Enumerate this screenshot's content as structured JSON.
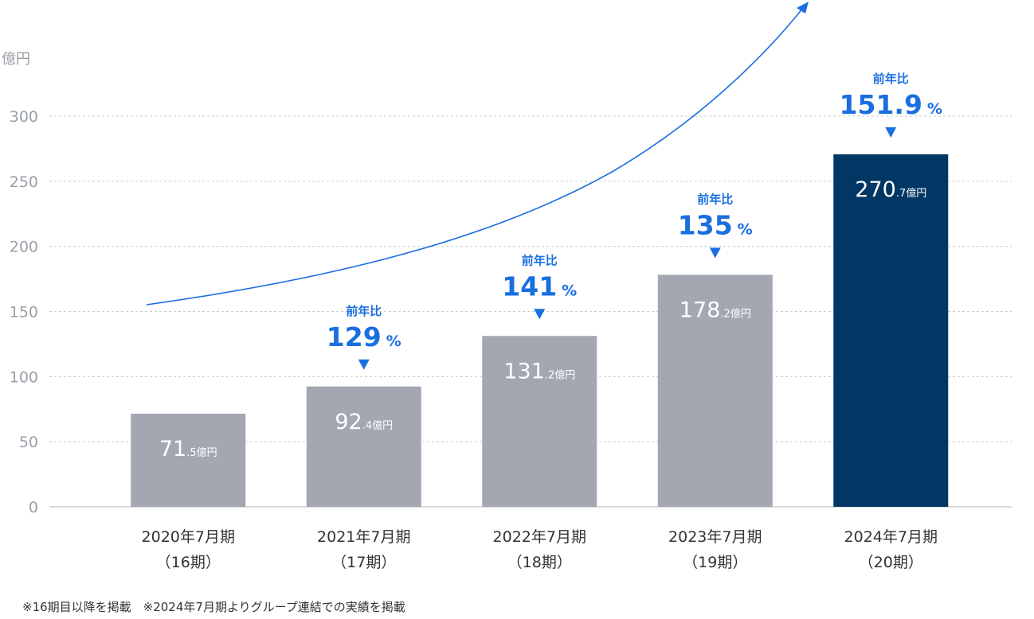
{
  "chart_data": {
    "type": "bar",
    "unit": "億円",
    "yticks": [
      0,
      50,
      100,
      150,
      200,
      250,
      300
    ],
    "ylim": [
      0,
      300
    ],
    "grid": true,
    "categories": [
      {
        "period": "2020年7月期",
        "term": "（16期）"
      },
      {
        "period": "2021年7月期",
        "term": "（17期）"
      },
      {
        "period": "2022年7月期",
        "term": "（18期）"
      },
      {
        "period": "2023年7月期",
        "term": "（19期）"
      },
      {
        "period": "2024年7月期",
        "term": "（20期）"
      }
    ],
    "values": [
      71.5,
      92.4,
      131.2,
      178.2,
      270.7
    ],
    "value_labels": [
      {
        "int": "71",
        "dec": ".5億円"
      },
      {
        "int": "92",
        "dec": ".4億円"
      },
      {
        "int": "131",
        "dec": ".2億円"
      },
      {
        "int": "178",
        "dec": ".2億円"
      },
      {
        "int": "270",
        "dec": ".7億円"
      }
    ],
    "growth": [
      null,
      {
        "label": "前年比",
        "num": "129",
        "pct": "%"
      },
      {
        "label": "前年比",
        "num": "141",
        "pct": "%"
      },
      {
        "label": "前年比",
        "num": "135",
        "pct": "%"
      },
      {
        "label": "前年比",
        "num": "151.9",
        "pct": "%"
      }
    ],
    "highlight_index": 4
  },
  "colors": {
    "bar": "#a2a7b2",
    "highlight": "#003764",
    "accent": "#1a6fe0",
    "axis_text": "#9aa0a8",
    "category_text": "#333333",
    "grid": "#c8ccd2",
    "baseline": "#bfc3c8"
  },
  "footnote": "※16期目以降を掲載　※2024年7月期よりグループ連結での実績を掲載"
}
